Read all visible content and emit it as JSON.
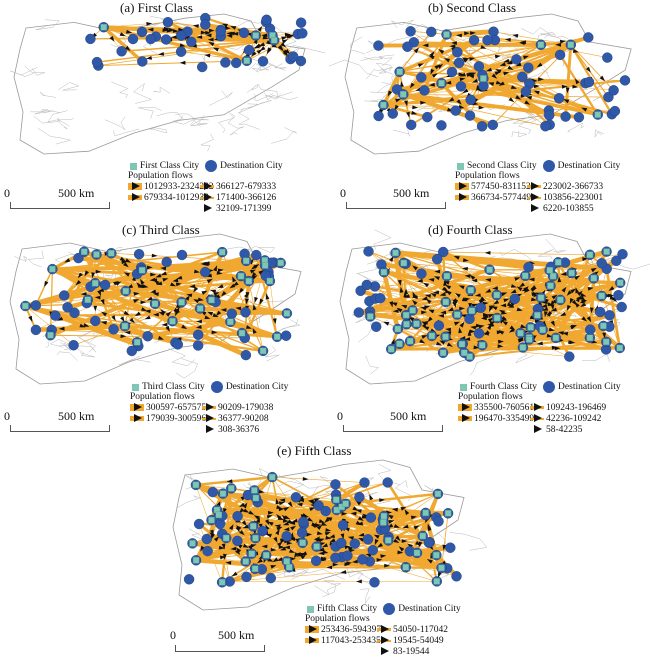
{
  "colors": {
    "flow": "#f0a830",
    "origin": "#7fc6b4",
    "destination": "#2f58a8",
    "boundary": "#b9b9b9",
    "arrow": "#111111"
  },
  "scale_zero": "0",
  "scale_km": "500 km",
  "population_flows_label": "Population flows",
  "destination_label": "Destination City",
  "panels": [
    {
      "title": "(a) First Class",
      "origin_label": "First Class City",
      "flows": [
        "1012933-2324222",
        "679334-1012932",
        "366127-679333",
        "171400-366126",
        "32109-171399"
      ]
    },
    {
      "title": "(b) Second Class",
      "origin_label": "Second Class City",
      "flows": [
        "577450-831152",
        "366734-577449",
        "223002-366733",
        "103856-223001",
        "6220-103855"
      ]
    },
    {
      "title": "(c) Third Class",
      "origin_label": "Third Class City",
      "flows": [
        "300597-657575",
        "179039-300596",
        "90209-179038",
        "36377-90208",
        "308-36376"
      ]
    },
    {
      "title": "(d) Fourth Class",
      "origin_label": "Fourth Class City",
      "flows": [
        "335500-760561",
        "196470-335499",
        "109243-196469",
        "42236-109242",
        "58-42235"
      ]
    },
    {
      "title": "(e) Fifth Class",
      "origin_label": "Fifth Class City",
      "flows": [
        "253436-594397",
        "117043-253435",
        "54050-117042",
        "19545-54049",
        "83-19544"
      ]
    }
  ]
}
